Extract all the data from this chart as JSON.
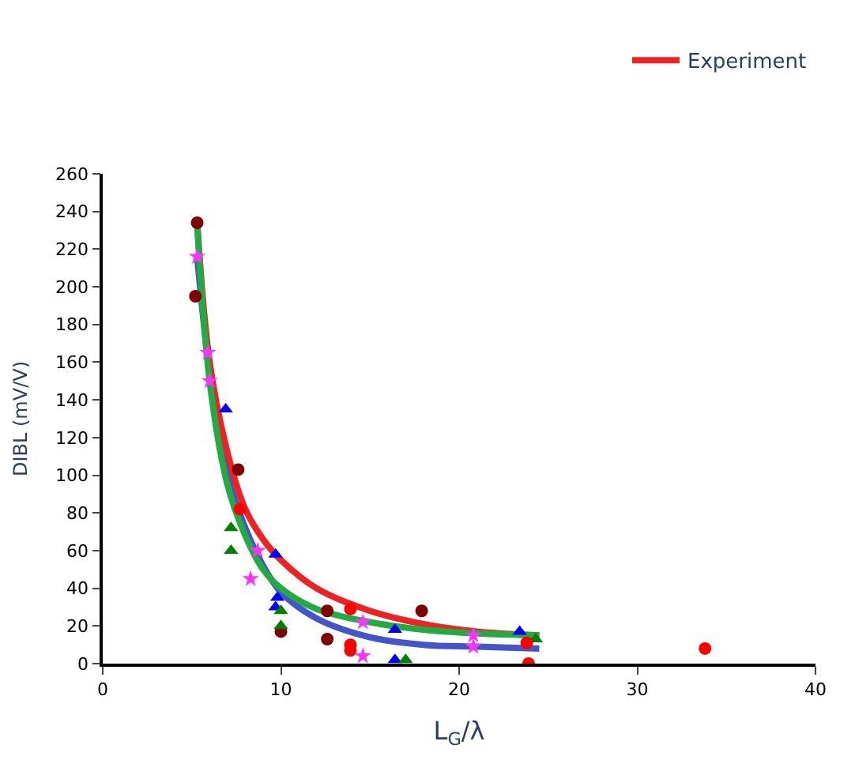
{
  "chart_data": {
    "type": "scatter",
    "xlabel": "L$_{G}$/λ",
    "ylabel": "DIBL (mV/V)",
    "xlim": [
      0,
      40
    ],
    "xticks": [
      0,
      10,
      20,
      30,
      40
    ],
    "ylim": [
      0,
      260
    ],
    "yticks": [
      0,
      20,
      40,
      60,
      80,
      100,
      120,
      140,
      160,
      180,
      200,
      220,
      240,
      260
    ],
    "legend": "top right",
    "series": [
      {
        "marker": "circle",
        "color": "#800000",
        "x": [
          5.3,
          5.2,
          7.6,
          10,
          12.6,
          12.6,
          17.9
        ],
        "values": [
          234,
          195,
          103,
          17,
          28,
          13,
          28
        ]
      },
      {
        "marker": "star",
        "color": "#ff33ff",
        "x": [
          5.3,
          5.9,
          6,
          8.7,
          8.3,
          14.6,
          14.6,
          20.8,
          20.8
        ],
        "values": [
          216,
          165,
          150,
          60,
          45,
          22,
          4,
          15,
          9
        ]
      },
      {
        "marker": "triangle",
        "color": "#0000ff",
        "x": [
          6.9,
          9.7,
          9.8,
          9.7,
          16.4,
          16.4,
          23.4
        ],
        "values": [
          135,
          58,
          35,
          30,
          18,
          2,
          17
        ]
      },
      {
        "marker": "triangle",
        "color": "#008000",
        "x": [
          7.2,
          7.2,
          10,
          10,
          17,
          24.3
        ],
        "values": [
          72,
          60,
          28,
          20,
          2,
          13
        ]
      },
      {
        "marker": "circle",
        "color": "#ff0000",
        "x": [
          7.7,
          13.9,
          13.9,
          13.9,
          23.8,
          23.9,
          33.8
        ],
        "values": [
          82,
          29,
          10,
          7,
          11,
          0,
          8
        ]
      },
      {
        "type": "line",
        "marker": "none",
        "line_style": "solid",
        "color": "#4455cc",
        "x": [
          5.3,
          6,
          7,
          8,
          9,
          10,
          12,
          15,
          18,
          21,
          24.5
        ],
        "values": [
          216,
          155,
          100,
          72,
          52,
          38,
          24,
          14,
          10,
          9,
          8
        ]
      },
      {
        "type": "line",
        "marker": "none",
        "line_style": "solid",
        "name": "Experiment",
        "color": "#ee2222",
        "x": [
          5.3,
          6,
          7,
          8,
          9,
          10,
          12,
          15,
          18,
          21,
          24.5
        ],
        "values": [
          234,
          160,
          112,
          82,
          66,
          55,
          40,
          28,
          21,
          17,
          15
        ]
      },
      {
        "type": "line",
        "marker": "none",
        "line_style": "solid",
        "color": "#22aa44",
        "x": [
          5.3,
          6,
          7,
          8,
          9,
          10,
          12,
          15,
          18,
          21,
          24.5
        ],
        "values": [
          234,
          150,
          95,
          68,
          50,
          40,
          29,
          22,
          18,
          16,
          15
        ]
      }
    ]
  }
}
